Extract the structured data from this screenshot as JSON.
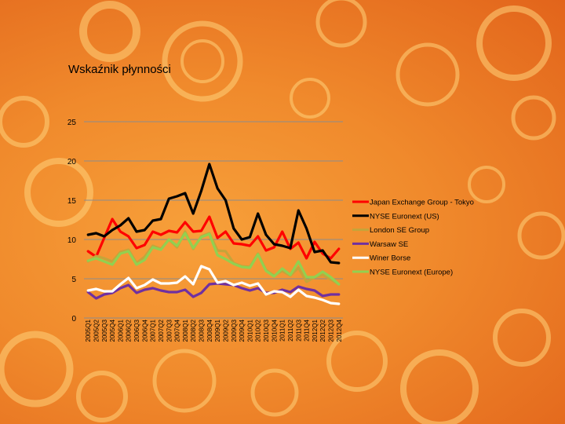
{
  "slide": {
    "title": "Wskaźnik płynności"
  },
  "chart_data": {
    "type": "line",
    "title": "Wskaźnik płynności",
    "xlabel": "",
    "ylabel": "",
    "ylim": [
      0,
      25
    ],
    "yticks": [
      0,
      5,
      10,
      15,
      20,
      25
    ],
    "grid": true,
    "legend_position": "right",
    "x": [
      "2005Q1",
      "2005Q2",
      "2005Q3",
      "2005Q4",
      "2006Q1",
      "2006Q2",
      "2006Q3",
      "2006Q4",
      "2007Q1",
      "2007Q2",
      "2007Q3",
      "2007Q4",
      "2008Q1",
      "2008Q2",
      "2008Q3",
      "2008Q4",
      "2009Q1",
      "2009Q2",
      "2009Q3",
      "2009Q4",
      "2010Q1",
      "2010Q2",
      "2010Q3",
      "2010Q4",
      "2011Q1",
      "2011Q2",
      "2011Q3",
      "2011Q4",
      "2012Q1",
      "2012Q2",
      "2012Q3",
      "2012Q4"
    ],
    "series": [
      {
        "name": "Japan Exchange Group - Tokyo",
        "color": "#ff0000",
        "values": [
          8.5,
          7.8,
          10.2,
          12.6,
          11.0,
          10.4,
          8.9,
          9.3,
          11.0,
          10.6,
          11.1,
          10.9,
          12.2,
          11.0,
          11.1,
          12.9,
          10.2,
          11.0,
          9.5,
          9.4,
          9.2,
          10.4,
          8.6,
          9.0,
          11.0,
          8.8,
          9.6,
          7.6,
          9.7,
          8.2,
          7.6,
          8.8
        ]
      },
      {
        "name": "NYSE Euronext (US)",
        "color": "#000000",
        "values": [
          10.6,
          10.8,
          10.4,
          11.2,
          11.8,
          12.7,
          11.0,
          11.2,
          12.4,
          12.6,
          15.2,
          15.5,
          15.9,
          13.3,
          16.2,
          19.6,
          16.5,
          15.0,
          11.4,
          10.0,
          10.3,
          13.3,
          10.6,
          9.4,
          9.2,
          8.9,
          13.7,
          11.4,
          8.4,
          8.6,
          7.1,
          7.0
        ]
      },
      {
        "name": "London SE Group",
        "color": "#c5a43a",
        "values": [
          7.2,
          7.9,
          7.6,
          7.2,
          8.4,
          8.7,
          7.0,
          7.8,
          9.2,
          8.8,
          10.0,
          9.0,
          11.0,
          8.8,
          10.4,
          10.8,
          8.6,
          8.5,
          7.0,
          6.6,
          6.5,
          8.2,
          6.1,
          5.4,
          6.0,
          5.4,
          6.4,
          4.6,
          5.2,
          5.5,
          4.9,
          4.3
        ]
      },
      {
        "name": "Warsaw SE",
        "color": "#7030a0",
        "values": [
          3.3,
          2.5,
          3.0,
          3.2,
          3.8,
          4.2,
          3.2,
          3.6,
          3.8,
          3.5,
          3.3,
          3.3,
          3.6,
          2.7,
          3.2,
          4.3,
          4.4,
          4.3,
          4.2,
          3.8,
          3.5,
          3.8,
          3.2,
          3.2,
          3.6,
          3.3,
          4.0,
          3.7,
          3.5,
          2.8,
          3.0,
          3.0
        ]
      },
      {
        "name": "Winer Borse",
        "color": "#ffffff",
        "values": [
          3.5,
          3.7,
          3.4,
          3.4,
          4.3,
          5.1,
          3.8,
          4.2,
          4.9,
          4.4,
          4.4,
          4.5,
          5.3,
          4.3,
          6.6,
          6.2,
          4.5,
          4.7,
          4.2,
          4.5,
          4.1,
          4.4,
          3.0,
          3.4,
          3.3,
          2.7,
          3.6,
          2.8,
          2.6,
          2.3,
          1.9,
          1.8
        ]
      },
      {
        "name": "NYSE Euronext (Europe)",
        "color": "#92d050",
        "values": [
          7.3,
          7.6,
          7.2,
          6.8,
          8.2,
          8.5,
          6.8,
          7.4,
          9.0,
          8.7,
          10.0,
          9.2,
          10.8,
          8.9,
          10.3,
          10.7,
          8.0,
          7.5,
          6.9,
          6.5,
          6.4,
          8.1,
          6.0,
          5.3,
          6.3,
          5.5,
          7.2,
          5.2,
          5.2,
          5.9,
          5.2,
          4.3
        ]
      }
    ]
  }
}
